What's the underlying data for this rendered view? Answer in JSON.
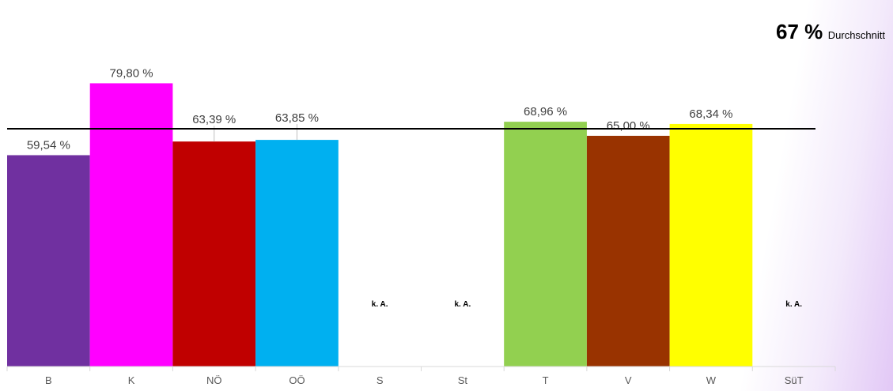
{
  "chart_data": {
    "type": "bar",
    "categories": [
      "B",
      "K",
      "NÖ",
      "OÖ",
      "S",
      "St",
      "T",
      "V",
      "W",
      "SüT"
    ],
    "values": [
      59.54,
      79.8,
      63.39,
      63.85,
      null,
      null,
      68.96,
      65.0,
      68.34,
      null
    ],
    "labels": [
      "59,54 %",
      "79,80 %",
      "63,39 %",
      "63,85 %",
      "k. A.",
      "k. A.",
      "68,96 %",
      "65,00 %",
      "68,34 %",
      "k. A."
    ],
    "colors": [
      "#7030a0",
      "#ff00ff",
      "#c00000",
      "#00b0f0",
      "",
      "",
      "#92d050",
      "#993300",
      "#ffff00",
      ""
    ],
    "ylim": [
      0,
      90
    ],
    "average": {
      "value": 67,
      "value_label": "67 %",
      "label": "Durchschnitt"
    },
    "title": "",
    "xlabel": "",
    "ylabel": "",
    "grid": false,
    "legend": "none"
  }
}
